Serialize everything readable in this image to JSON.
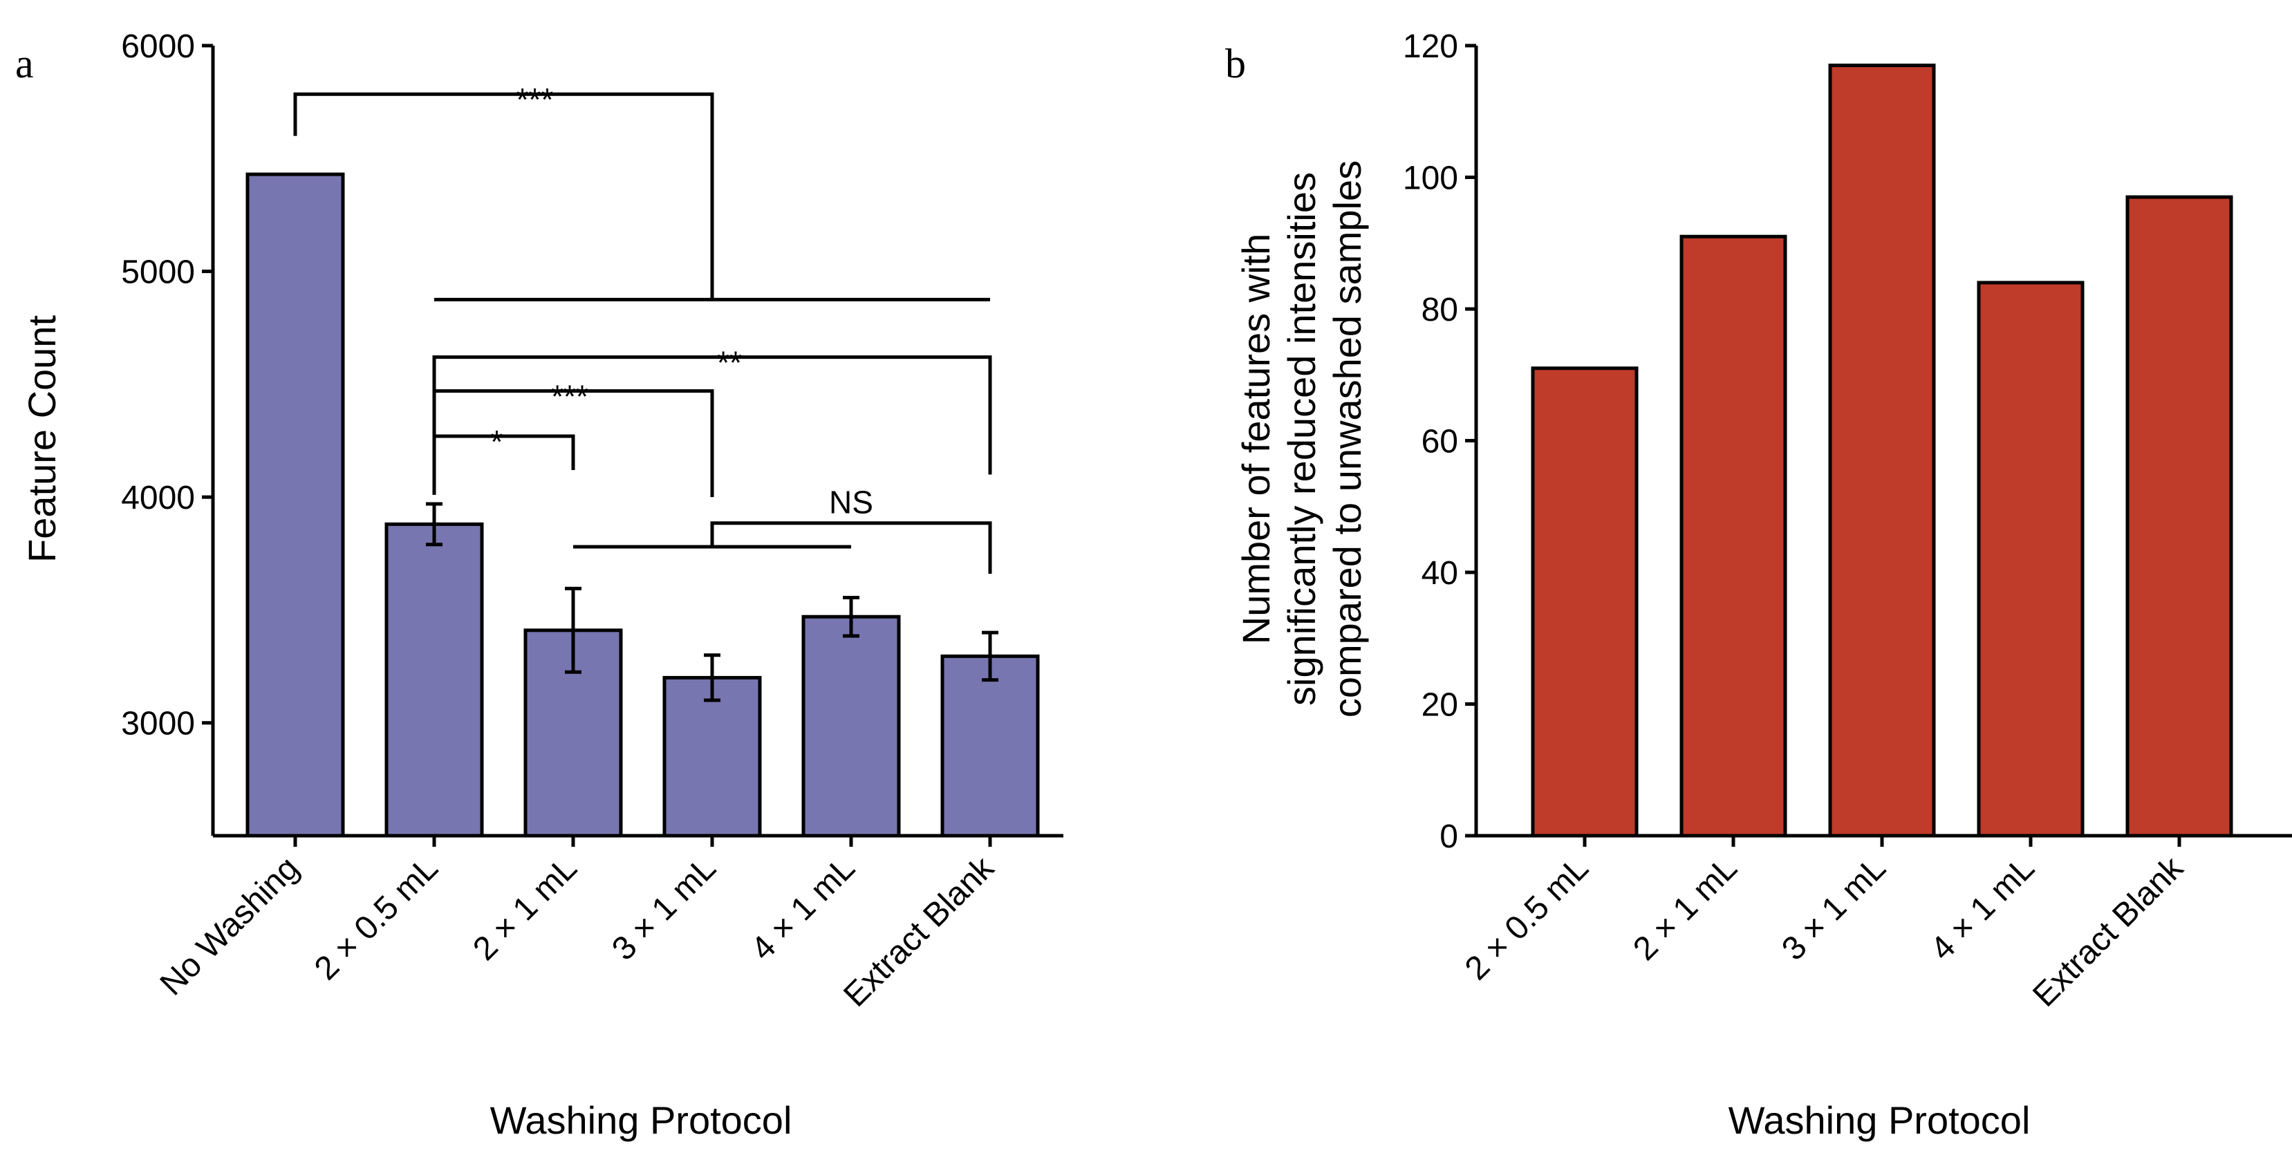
{
  "chart_data": [
    {
      "panel_label": "a",
      "type": "bar",
      "categories": [
        "No Washing",
        "2 × 0.5 mL",
        "2 × 1 mL",
        "3 × 1 mL",
        "4 × 1 mL",
        "Extract Blank"
      ],
      "values": [
        5430,
        3880,
        3410,
        3200,
        3470,
        3295
      ],
      "errors": [
        0,
        90,
        185,
        100,
        85,
        105
      ],
      "xlabel": "Washing Protocol",
      "ylabel": "Feature Count",
      "ylim": [
        2500,
        6000
      ],
      "yticks": [
        3000,
        4000,
        5000,
        6000
      ],
      "bar_color": "#7776b0",
      "significance": [
        {
          "label": "***",
          "from": [
            0
          ],
          "to": [
            1,
            2,
            3,
            4,
            5
          ]
        },
        {
          "label": "*",
          "from": [
            1
          ],
          "to": [
            2
          ]
        },
        {
          "label": "***",
          "from": [
            1
          ],
          "to": [
            3
          ]
        },
        {
          "label": "**",
          "from": [
            1
          ],
          "to": [
            5
          ]
        },
        {
          "label": "NS",
          "from": [
            2,
            3,
            4
          ],
          "to": [
            5
          ]
        }
      ]
    },
    {
      "panel_label": "b",
      "type": "bar",
      "categories": [
        "2 × 0.5 mL",
        "2 × 1 mL",
        "3 × 1 mL",
        "4 × 1 mL",
        "Extract Blank"
      ],
      "values": [
        71,
        91,
        117,
        84,
        97
      ],
      "xlabel": "Washing Protocol",
      "ylabel_lines": [
        "Number of features with",
        "significantly reduced intensities",
        "compared to unwashed samples"
      ],
      "ylim": [
        0,
        120
      ],
      "yticks": [
        0,
        20,
        40,
        60,
        80,
        100,
        120
      ],
      "bar_color": "#bf3b2a"
    }
  ]
}
